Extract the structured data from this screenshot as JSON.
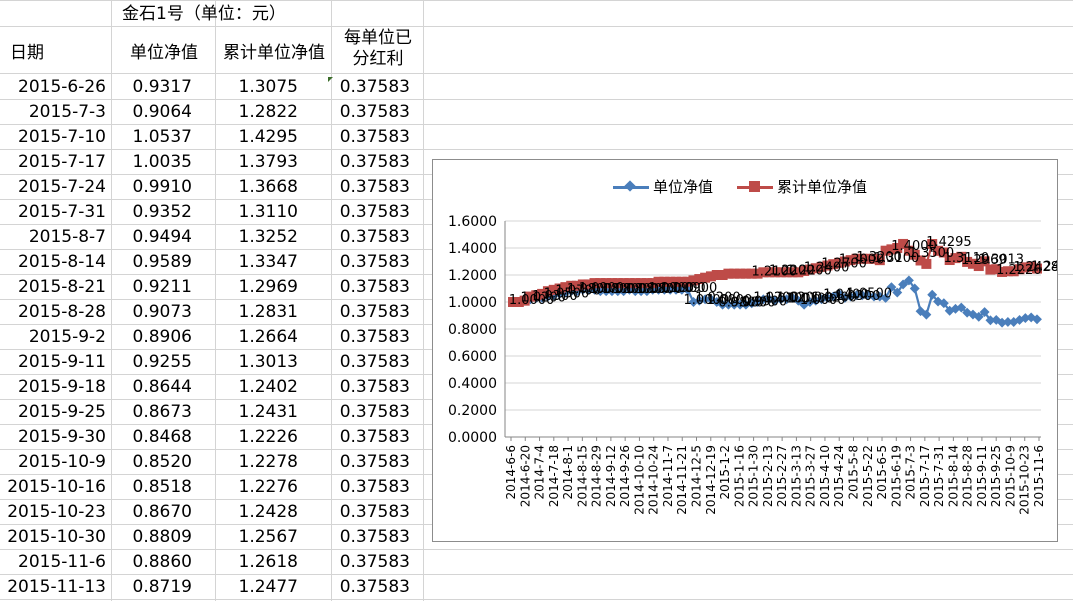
{
  "sheet": {
    "title": "金石1号（单位：元）",
    "headers": {
      "date": "日期",
      "nav": "单位净值",
      "cum_nav": "累计单位净值",
      "dividend_line1": "每单位已",
      "dividend_line2": "分红利"
    },
    "rows": [
      {
        "date": "2015-6-26",
        "nav": "0.9317",
        "cum": "1.3075",
        "div": "0.37583"
      },
      {
        "date": "2015-7-3",
        "nav": "0.9064",
        "cum": "1.2822",
        "div": "0.37583"
      },
      {
        "date": "2015-7-10",
        "nav": "1.0537",
        "cum": "1.4295",
        "div": "0.37583"
      },
      {
        "date": "2015-7-17",
        "nav": "1.0035",
        "cum": "1.3793",
        "div": "0.37583"
      },
      {
        "date": "2015-7-24",
        "nav": "0.9910",
        "cum": "1.3668",
        "div": "0.37583"
      },
      {
        "date": "2015-7-31",
        "nav": "0.9352",
        "cum": "1.3110",
        "div": "0.37583"
      },
      {
        "date": "2015-8-7",
        "nav": "0.9494",
        "cum": "1.3252",
        "div": "0.37583"
      },
      {
        "date": "2015-8-14",
        "nav": "0.9589",
        "cum": "1.3347",
        "div": "0.37583"
      },
      {
        "date": "2015-8-21",
        "nav": "0.9211",
        "cum": "1.2969",
        "div": "0.37583"
      },
      {
        "date": "2015-8-28",
        "nav": "0.9073",
        "cum": "1.2831",
        "div": "0.37583"
      },
      {
        "date": "2015-9-2",
        "nav": "0.8906",
        "cum": "1.2664",
        "div": "0.37583"
      },
      {
        "date": "2015-9-11",
        "nav": "0.9255",
        "cum": "1.3013",
        "div": "0.37583"
      },
      {
        "date": "2015-9-18",
        "nav": "0.8644",
        "cum": "1.2402",
        "div": "0.37583"
      },
      {
        "date": "2015-9-25",
        "nav": "0.8673",
        "cum": "1.2431",
        "div": "0.37583"
      },
      {
        "date": "2015-9-30",
        "nav": "0.8468",
        "cum": "1.2226",
        "div": "0.37583"
      },
      {
        "date": "2015-10-9",
        "nav": "0.8520",
        "cum": "1.2278",
        "div": "0.37583"
      },
      {
        "date": "2015-10-16",
        "nav": "0.8518",
        "cum": "1.2276",
        "div": "0.37583"
      },
      {
        "date": "2015-10-23",
        "nav": "0.8670",
        "cum": "1.2428",
        "div": "0.37583"
      },
      {
        "date": "2015-10-30",
        "nav": "0.8809",
        "cum": "1.2567",
        "div": "0.37583"
      },
      {
        "date": "2015-11-6",
        "nav": "0.8860",
        "cum": "1.2618",
        "div": "0.37583"
      },
      {
        "date": "2015-11-13",
        "nav": "0.8719",
        "cum": "1.2477",
        "div": "0.37583"
      }
    ]
  },
  "colors": {
    "nav_series": "#4a7ebb",
    "cum_series": "#be4b48",
    "gridline": "#d4d4d4",
    "chart_border": "#8c8c8c"
  },
  "chart_data": {
    "type": "line",
    "legend_position": "top",
    "grid": true,
    "ylim": [
      0,
      1.6
    ],
    "yticks": [
      "1.6000",
      "1.4000",
      "1.2000",
      "1.0000",
      "0.8000",
      "0.6000",
      "0.4000",
      "0.2000",
      "0.0000"
    ],
    "xtick_labels": [
      "2014-6-6",
      "2014-6-20",
      "2014-7-4",
      "2014-7-18",
      "2014-8-1",
      "2014-8-15",
      "2014-8-29",
      "2014-9-12",
      "2014-9-26",
      "2014-10-10",
      "2014-10-24",
      "2014-11-7",
      "2014-11-21",
      "2014-12-5",
      "2014-12-19",
      "2015-1-2",
      "2015-1-16",
      "2015-1-30",
      "2015-2-13",
      "2015-2-27",
      "2015-3-13",
      "2015-3-27",
      "2015-4-10",
      "2015-4-24",
      "2015-5-8",
      "2015-5-22",
      "2015-6-5",
      "2015-6-19",
      "2015-7-3",
      "2015-7-17",
      "2015-7-31",
      "2015-8-14",
      "2015-8-28",
      "2015-9-11",
      "2015-9-25",
      "2015-10-9",
      "2015-10-23",
      "2015-11-6"
    ],
    "series": [
      {
        "name": "单位净值",
        "values": [
          1.0,
          1.0,
          1.01,
          1.02,
          1.03,
          1.03,
          1.04,
          1.05,
          1.06,
          1.07,
          1.08,
          1.08,
          1.09,
          1.09,
          1.09,
          1.08,
          1.08,
          1.08,
          1.08,
          1.08,
          1.09,
          1.08,
          1.08,
          1.08,
          1.09,
          1.09,
          1.09,
          1.09,
          1.09,
          1.09,
          1.09,
          1.0,
          1.01,
          1.02,
          1.02,
          1.0,
          0.98,
          0.98,
          0.98,
          0.98,
          0.98,
          0.99,
          1.0,
          1.02,
          1.02,
          1.01,
          1.02,
          1.02,
          1.03,
          1.01,
          0.98,
          1.0,
          1.01,
          1.02,
          1.03,
          1.04,
          1.06,
          1.03,
          1.04,
          1.05,
          1.05,
          1.05,
          1.04,
          1.04,
          1.03,
          1.11,
          1.07,
          1.13,
          1.16,
          1.1,
          0.9317,
          0.9064,
          1.0537,
          1.0035,
          0.991,
          0.9352,
          0.9494,
          0.9589,
          0.9211,
          0.9073,
          0.8906,
          0.9255,
          0.8644,
          0.8673,
          0.8468,
          0.852,
          0.8518,
          0.867,
          0.8809,
          0.886,
          0.8719
        ]
      },
      {
        "name": "累计单位净值",
        "values": [
          1.0,
          1.0,
          1.01,
          1.04,
          1.05,
          1.06,
          1.08,
          1.09,
          1.1,
          1.11,
          1.12,
          1.12,
          1.13,
          1.13,
          1.14,
          1.14,
          1.14,
          1.14,
          1.14,
          1.14,
          1.14,
          1.14,
          1.14,
          1.14,
          1.14,
          1.15,
          1.15,
          1.15,
          1.15,
          1.15,
          1.15,
          1.16,
          1.17,
          1.18,
          1.19,
          1.2,
          1.2,
          1.21,
          1.21,
          1.21,
          1.21,
          1.21,
          1.21,
          1.22,
          1.22,
          1.22,
          1.22,
          1.22,
          1.22,
          1.22,
          1.23,
          1.24,
          1.25,
          1.26,
          1.27,
          1.28,
          1.29,
          1.3,
          1.31,
          1.32,
          1.32,
          1.32,
          1.32,
          1.31,
          1.38,
          1.39,
          1.4,
          1.43,
          1.38,
          1.35,
          1.3075,
          1.2822,
          1.4295,
          1.3793,
          1.3668,
          1.311,
          1.3252,
          1.3347,
          1.2969,
          1.2831,
          1.2664,
          1.3013,
          1.2402,
          1.2431,
          1.2226,
          1.2278,
          1.2276,
          1.2428,
          1.2567,
          1.2618,
          1.2477
        ]
      }
    ]
  }
}
